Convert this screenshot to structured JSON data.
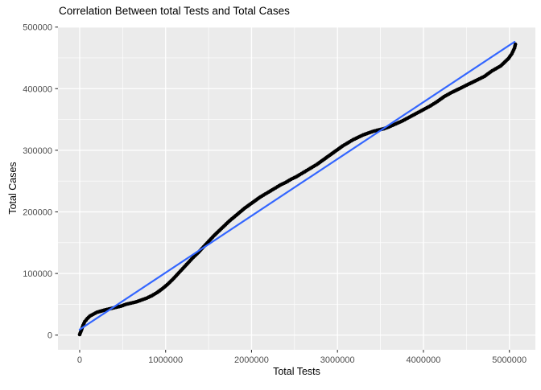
{
  "title": "Correlation Between total Tests and Total Cases",
  "colors": {
    "panel_background": "#EBEBEB",
    "grid": "#FFFFFF",
    "points": "#000000",
    "fit_line": "#3366FF",
    "tick_label": "#4D4D4D",
    "tick_mark": "#333333",
    "text": "#000000",
    "plot_background": "#FFFFFF"
  },
  "chart_data": {
    "type": "scatter",
    "title": "Correlation Between total Tests and Total Cases",
    "xlabel": "Total Tests",
    "ylabel": "Total Cases",
    "legend": "none",
    "grid": "white major and minor gridlines on gray panel",
    "xlim": [
      0,
      5070000
    ],
    "ylim": [
      0,
      500000
    ],
    "xlim_expanded": [
      -252500,
      5302500
    ],
    "ylim_expanded": [
      -23850,
      500850
    ],
    "x_ticks": {
      "values": [
        0,
        1000000,
        2000000,
        3000000,
        4000000,
        5000000
      ],
      "labels": [
        "0",
        "1000000",
        "2000000",
        "3000000",
        "4000000",
        "5000000"
      ]
    },
    "y_ticks": {
      "values": [
        0,
        100000,
        200000,
        300000,
        400000,
        500000
      ],
      "labels": [
        "0",
        "100000",
        "200000",
        "300000",
        "400000",
        "500000"
      ]
    },
    "series": [
      {
        "name": "total-cases-vs-total-tests-points",
        "kind": "points",
        "color": "#000000",
        "points": [
          [
            0,
            1000
          ],
          [
            20000,
            8000
          ],
          [
            40000,
            16000
          ],
          [
            60000,
            22000
          ],
          [
            90000,
            27000
          ],
          [
            120000,
            31000
          ],
          [
            160000,
            34000
          ],
          [
            200000,
            37000
          ],
          [
            250000,
            39000
          ],
          [
            300000,
            41000
          ],
          [
            360000,
            43000
          ],
          [
            420000,
            45000
          ],
          [
            480000,
            47000
          ],
          [
            540000,
            50000
          ],
          [
            600000,
            52000
          ],
          [
            660000,
            54000
          ],
          [
            720000,
            57000
          ],
          [
            780000,
            60000
          ],
          [
            840000,
            64000
          ],
          [
            900000,
            69000
          ],
          [
            960000,
            75000
          ],
          [
            1020000,
            82000
          ],
          [
            1080000,
            90000
          ],
          [
            1140000,
            99000
          ],
          [
            1200000,
            108000
          ],
          [
            1260000,
            117000
          ],
          [
            1320000,
            126000
          ],
          [
            1380000,
            134000
          ],
          [
            1440000,
            143000
          ],
          [
            1500000,
            152000
          ],
          [
            1560000,
            161000
          ],
          [
            1620000,
            169000
          ],
          [
            1680000,
            177000
          ],
          [
            1740000,
            185000
          ],
          [
            1800000,
            192000
          ],
          [
            1860000,
            199000
          ],
          [
            1920000,
            206000
          ],
          [
            1980000,
            212000
          ],
          [
            2040000,
            218000
          ],
          [
            2100000,
            224000
          ],
          [
            2160000,
            229000
          ],
          [
            2220000,
            234000
          ],
          [
            2280000,
            239000
          ],
          [
            2340000,
            244000
          ],
          [
            2400000,
            248000
          ],
          [
            2460000,
            253000
          ],
          [
            2520000,
            257000
          ],
          [
            2580000,
            262000
          ],
          [
            2640000,
            267000
          ],
          [
            2700000,
            272000
          ],
          [
            2760000,
            277000
          ],
          [
            2820000,
            283000
          ],
          [
            2880000,
            289000
          ],
          [
            2940000,
            295000
          ],
          [
            3000000,
            301000
          ],
          [
            3060000,
            307000
          ],
          [
            3120000,
            312000
          ],
          [
            3180000,
            317000
          ],
          [
            3240000,
            321000
          ],
          [
            3300000,
            325000
          ],
          [
            3360000,
            328000
          ],
          [
            3420000,
            331000
          ],
          [
            3480000,
            333000
          ],
          [
            3540000,
            335000
          ],
          [
            3600000,
            338000
          ],
          [
            3680000,
            343000
          ],
          [
            3760000,
            348000
          ],
          [
            3840000,
            354000
          ],
          [
            3920000,
            360000
          ],
          [
            4000000,
            366000
          ],
          [
            4080000,
            372000
          ],
          [
            4160000,
            379000
          ],
          [
            4240000,
            387000
          ],
          [
            4330000,
            394000
          ],
          [
            4420000,
            400000
          ],
          [
            4520000,
            407000
          ],
          [
            4610000,
            413000
          ],
          [
            4710000,
            420000
          ],
          [
            4800000,
            429000
          ],
          [
            4900000,
            437000
          ],
          [
            4990000,
            449000
          ],
          [
            5030000,
            457000
          ],
          [
            5060000,
            466000
          ],
          [
            5070000,
            472000
          ]
        ]
      },
      {
        "name": "linear-fit-line",
        "kind": "line",
        "color": "#3366FF",
        "points": [
          [
            0,
            9000
          ],
          [
            5060000,
            476000
          ]
        ]
      }
    ]
  }
}
